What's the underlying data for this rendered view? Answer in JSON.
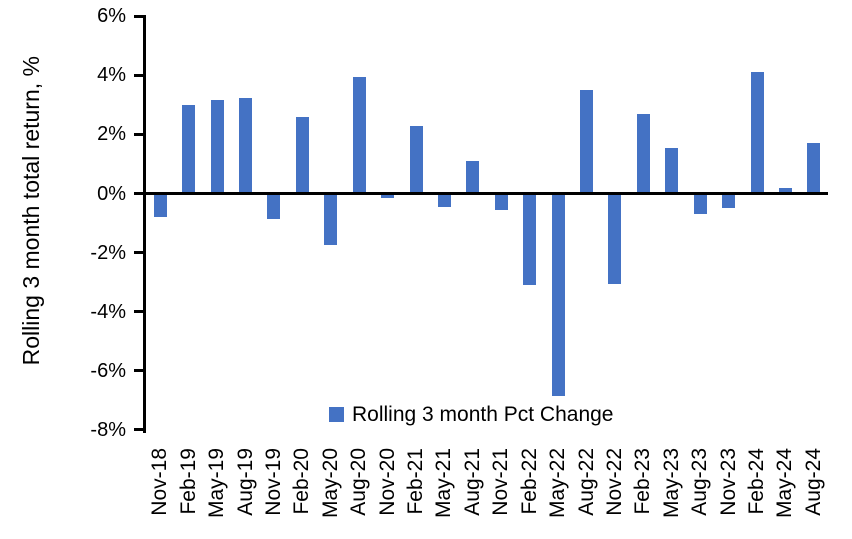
{
  "chart_data": {
    "type": "bar",
    "title": "",
    "xlabel": "",
    "ylabel": "Rolling 3 month total return, %",
    "categories": [
      "Nov-18",
      "Feb-19",
      "May-19",
      "Aug-19",
      "Nov-19",
      "Feb-20",
      "May-20",
      "Aug-20",
      "Nov-20",
      "Feb-21",
      "May-21",
      "Aug-21",
      "Nov-21",
      "Feb-22",
      "May-22",
      "Aug-22",
      "Nov-22",
      "Feb-23",
      "May-23",
      "Aug-23",
      "Nov-23",
      "Feb-24",
      "May-24",
      "Aug-24"
    ],
    "series": [
      {
        "name": "Rolling 3 month Pct Change",
        "values": [
          -0.8,
          3.0,
          3.15,
          3.25,
          -0.85,
          2.6,
          -1.75,
          3.95,
          -0.15,
          2.3,
          -0.45,
          1.1,
          -0.55,
          -3.1,
          -6.85,
          3.5,
          -3.05,
          2.7,
          1.55,
          -0.7,
          -0.5,
          4.1,
          0.2,
          1.7
        ]
      }
    ],
    "ylim": [
      -8,
      6
    ],
    "ytick_labels": [
      "6%",
      "4%",
      "2%",
      "0%",
      "-2%",
      "-4%",
      "-6%",
      "-8%"
    ],
    "ytick_values": [
      6,
      4,
      2,
      0,
      -2,
      -4,
      -6,
      -8
    ],
    "grid": false,
    "legend_position": "bottom-center-inside",
    "bar_color": "#4472C4",
    "axis_color": "#000000"
  }
}
